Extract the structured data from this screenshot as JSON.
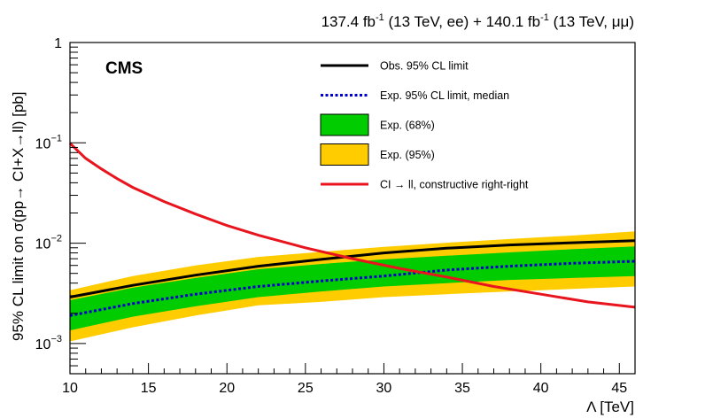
{
  "header": {
    "lumi_ee": "137.4 fb",
    "lumi_ee_sup": "-1",
    "lumi_ee_tail": " (13 TeV, ee) + 140.1 fb",
    "lumi_mm_sup": "-1",
    "lumi_mm_tail": " (13 TeV, μμ)",
    "experiment": "CMS"
  },
  "chart_data": {
    "type": "line",
    "xlabel": "Λ [TeV]",
    "ylabel": "95% CL limit on σ(pp→ CI+X→ll) [pb]",
    "xlim": [
      10,
      46
    ],
    "ylim": [
      0.0005,
      1
    ],
    "yscale": "log",
    "x_ticks": [
      10,
      15,
      20,
      25,
      30,
      35,
      40,
      45
    ],
    "y_ticks": [
      {
        "value": 1,
        "label": "1"
      },
      {
        "value": 0.1,
        "label": "10",
        "exp": "−1"
      },
      {
        "value": 0.01,
        "label": "10",
        "exp": "−2"
      },
      {
        "value": 0.001,
        "label": "10",
        "exp": "−3"
      }
    ],
    "x": [
      10,
      14,
      18,
      22,
      26,
      30,
      34,
      38,
      42,
      46
    ],
    "band_95": {
      "low": [
        0.00105,
        0.00145,
        0.0019,
        0.0024,
        0.0026,
        0.0029,
        0.0031,
        0.0033,
        0.0035,
        0.0037
      ],
      "high": [
        0.0034,
        0.0047,
        0.006,
        0.0073,
        0.0082,
        0.0092,
        0.0101,
        0.011,
        0.0119,
        0.0131
      ]
    },
    "band_68": {
      "low": [
        0.00135,
        0.00185,
        0.00235,
        0.0029,
        0.0033,
        0.0037,
        0.004,
        0.0043,
        0.0045,
        0.0047
      ],
      "high": [
        0.0027,
        0.0036,
        0.0045,
        0.0055,
        0.0062,
        0.0069,
        0.0075,
        0.0081,
        0.0087,
        0.0093
      ]
    },
    "series": [
      {
        "name": "Obs. 95% CL limit",
        "style": "solid",
        "color": "#000000",
        "x": [
          10,
          14,
          18,
          22,
          26,
          30,
          34,
          38,
          42,
          46
        ],
        "values": [
          0.0029,
          0.0038,
          0.0048,
          0.0059,
          0.0069,
          0.008,
          0.0089,
          0.0096,
          0.0101,
          0.0106
        ]
      },
      {
        "name": "Exp. 95% CL limit, median",
        "style": "dashed",
        "color": "#0000cc",
        "x": [
          10,
          14,
          18,
          22,
          26,
          30,
          34,
          38,
          42,
          46
        ],
        "values": [
          0.0019,
          0.0025,
          0.0031,
          0.0037,
          0.0042,
          0.0047,
          0.0054,
          0.0059,
          0.0063,
          0.0066
        ]
      },
      {
        "name": "CI → ll, constructive right-right",
        "style": "solid",
        "color": "#e8141e",
        "x": [
          10,
          11,
          12,
          13,
          14,
          16,
          18,
          20,
          22,
          25,
          28,
          31,
          34,
          37,
          40,
          43,
          46
        ],
        "values": [
          0.099,
          0.07,
          0.055,
          0.044,
          0.036,
          0.026,
          0.0195,
          0.015,
          0.012,
          0.009,
          0.007,
          0.0056,
          0.0046,
          0.0037,
          0.0031,
          0.0026,
          0.0023
        ]
      }
    ],
    "legend": [
      {
        "label": "Obs. 95% CL limit",
        "kind": "line-solid",
        "color": "#000000"
      },
      {
        "label": "Exp. 95% CL limit, median",
        "kind": "line-dashed",
        "color": "#0000cc"
      },
      {
        "label": "Exp. (68%)",
        "kind": "box",
        "color": "#00cc00"
      },
      {
        "label": "Exp. (95%)",
        "kind": "box",
        "color": "#ffcc00"
      },
      {
        "label": "CI → ll, constructive right-right",
        "kind": "line-solid",
        "color": "#e8141e"
      }
    ],
    "legend_position": "top-right",
    "grid": false,
    "colors": {
      "band_95": "#ffcc00",
      "band_68": "#00cc00",
      "observed": "#000000",
      "expected": "#0000cc",
      "signal": "#e8141e"
    }
  }
}
